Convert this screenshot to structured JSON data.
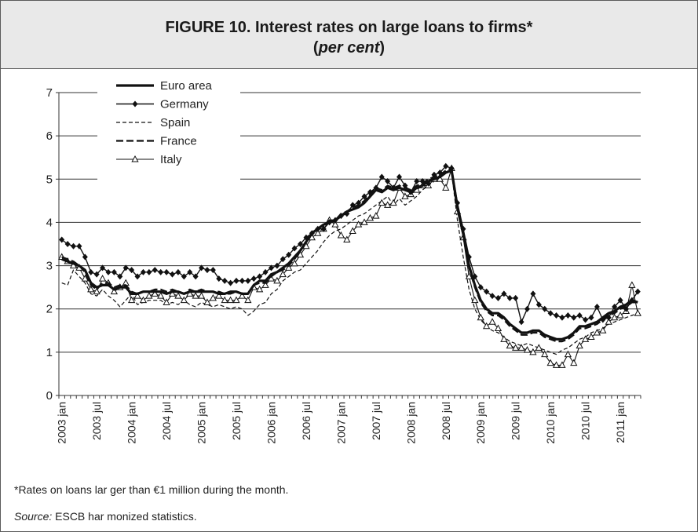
{
  "header": {
    "title": "FIGURE 10. Interest rates on large loans to firms*",
    "subtitle_open": "(",
    "subtitle_em": "per cent",
    "subtitle_close": ")"
  },
  "footnotes": {
    "note": "*Rates on loans lar ger than €1 million during the month.",
    "source_label": "Source:",
    "source_text": " ESCB har monized statistics."
  },
  "chart_data": {
    "type": "line",
    "title": "",
    "xlabel": "",
    "ylabel": "",
    "ylim": [
      0,
      7
    ],
    "yticks": [
      "0",
      "1",
      "2",
      "3",
      "4",
      "5",
      "6",
      "7"
    ],
    "grid": "horizontal",
    "legend_position": "top-left",
    "x_start": "2003-01",
    "x": [
      "2003-01",
      "2003-02",
      "2003-03",
      "2003-04",
      "2003-05",
      "2003-06",
      "2003-07",
      "2003-08",
      "2003-09",
      "2003-10",
      "2003-11",
      "2003-12",
      "2004-01",
      "2004-02",
      "2004-03",
      "2004-04",
      "2004-05",
      "2004-06",
      "2004-07",
      "2004-08",
      "2004-09",
      "2004-10",
      "2004-11",
      "2004-12",
      "2005-01",
      "2005-02",
      "2005-03",
      "2005-04",
      "2005-05",
      "2005-06",
      "2005-07",
      "2005-08",
      "2005-09",
      "2005-10",
      "2005-11",
      "2005-12",
      "2006-01",
      "2006-02",
      "2006-03",
      "2006-04",
      "2006-05",
      "2006-06",
      "2006-07",
      "2006-08",
      "2006-09",
      "2006-10",
      "2006-11",
      "2006-12",
      "2007-01",
      "2007-02",
      "2007-03",
      "2007-04",
      "2007-05",
      "2007-06",
      "2007-07",
      "2007-08",
      "2007-09",
      "2007-10",
      "2007-11",
      "2007-12",
      "2008-01",
      "2008-02",
      "2008-03",
      "2008-04",
      "2008-05",
      "2008-06",
      "2008-07",
      "2008-08",
      "2008-09",
      "2008-10",
      "2008-11",
      "2008-12",
      "2009-01",
      "2009-02",
      "2009-03",
      "2009-04",
      "2009-05",
      "2009-06",
      "2009-07",
      "2009-08",
      "2009-09",
      "2009-10",
      "2009-11",
      "2009-12",
      "2010-01",
      "2010-02",
      "2010-03",
      "2010-04",
      "2010-05",
      "2010-06",
      "2010-07",
      "2010-08",
      "2010-09",
      "2010-10",
      "2010-11",
      "2010-12",
      "2011-01",
      "2011-02",
      "2011-03",
      "2011-04"
    ],
    "x_tick_labels": [
      "2003 jan",
      "2003 jul",
      "2004 jan",
      "2004 jul",
      "2005 jan",
      "2005 jul",
      "2006 jan",
      "2006 jul",
      "2007 jan",
      "2007 jul",
      "2008 jan",
      "2008 jul",
      "2009 jan",
      "2009 jul",
      "2010 jan",
      "2010 jul",
      "2011 jan"
    ],
    "series": [
      {
        "name": "Euro area",
        "style": "bold-solid",
        "values": [
          3.15,
          3.1,
          3.05,
          3.0,
          2.9,
          2.6,
          2.5,
          2.55,
          2.55,
          2.45,
          2.5,
          2.5,
          2.35,
          2.35,
          2.4,
          2.4,
          2.4,
          2.4,
          2.35,
          2.4,
          2.4,
          2.35,
          2.4,
          2.4,
          2.4,
          2.4,
          2.4,
          2.35,
          2.35,
          2.4,
          2.4,
          2.35,
          2.35,
          2.55,
          2.65,
          2.65,
          2.8,
          2.85,
          2.95,
          3.05,
          3.2,
          3.35,
          3.55,
          3.75,
          3.85,
          3.95,
          4.0,
          4.05,
          4.15,
          4.25,
          4.3,
          4.35,
          4.45,
          4.6,
          4.75,
          4.7,
          4.8,
          4.75,
          4.8,
          4.75,
          4.7,
          4.8,
          4.85,
          4.95,
          5.0,
          5.05,
          5.15,
          5.2,
          4.35,
          3.75,
          3.0,
          2.55,
          2.2,
          2.0,
          1.9,
          1.9,
          1.8,
          1.65,
          1.55,
          1.45,
          1.45,
          1.5,
          1.5,
          1.4,
          1.35,
          1.3,
          1.3,
          1.35,
          1.45,
          1.6,
          1.6,
          1.65,
          1.7,
          1.8,
          1.9,
          1.95,
          2.05,
          2.1,
          2.2,
          2.15
        ]
      },
      {
        "name": "Germany",
        "style": "solid-diamond",
        "values": [
          3.6,
          3.5,
          3.45,
          3.45,
          3.2,
          2.85,
          2.8,
          2.95,
          2.85,
          2.85,
          2.75,
          2.95,
          2.9,
          2.75,
          2.85,
          2.85,
          2.9,
          2.85,
          2.85,
          2.8,
          2.85,
          2.75,
          2.85,
          2.75,
          2.95,
          2.9,
          2.9,
          2.7,
          2.65,
          2.6,
          2.65,
          2.65,
          2.65,
          2.7,
          2.75,
          2.85,
          2.95,
          3.0,
          3.15,
          3.25,
          3.4,
          3.5,
          3.65,
          3.75,
          3.85,
          3.85,
          4.0,
          4.05,
          4.15,
          4.2,
          4.4,
          4.45,
          4.6,
          4.7,
          4.8,
          5.05,
          4.95,
          4.8,
          5.05,
          4.85,
          4.7,
          4.95,
          4.95,
          4.9,
          5.1,
          5.15,
          5.3,
          5.25,
          4.45,
          3.85,
          3.2,
          2.75,
          2.5,
          2.4,
          2.3,
          2.25,
          2.35,
          2.25,
          2.25,
          1.7,
          2.0,
          2.35,
          2.1,
          2.0,
          1.9,
          1.85,
          1.8,
          1.85,
          1.8,
          1.85,
          1.75,
          1.8,
          2.05,
          1.75,
          1.8,
          2.05,
          2.2,
          2.0,
          2.2,
          2.4
        ]
      },
      {
        "name": "Spain",
        "style": "dashed",
        "values": [
          2.6,
          2.55,
          2.9,
          2.75,
          2.6,
          2.35,
          2.3,
          2.45,
          2.3,
          2.2,
          2.05,
          2.2,
          2.35,
          2.1,
          2.15,
          2.2,
          2.2,
          2.2,
          2.1,
          2.15,
          2.1,
          2.2,
          2.1,
          2.05,
          2.15,
          2.1,
          2.05,
          2.1,
          2.05,
          2.0,
          2.05,
          2.0,
          1.85,
          1.95,
          2.1,
          2.15,
          2.35,
          2.45,
          2.65,
          2.75,
          2.85,
          2.9,
          3.05,
          3.2,
          3.35,
          3.55,
          3.7,
          3.8,
          3.85,
          3.95,
          4.05,
          4.15,
          4.2,
          4.3,
          4.4,
          4.5,
          4.6,
          4.4,
          4.55,
          4.4,
          4.5,
          4.6,
          4.75,
          4.85,
          4.95,
          5.1,
          5.2,
          5.15,
          4.05,
          3.2,
          2.45,
          2.0,
          1.75,
          1.6,
          1.5,
          1.45,
          1.35,
          1.25,
          1.2,
          1.15,
          1.2,
          1.15,
          1.1,
          1.05,
          1.0,
          0.95,
          1.05,
          1.1,
          1.2,
          1.3,
          1.35,
          1.45,
          1.5,
          1.55,
          1.65,
          1.7,
          1.75,
          1.8,
          1.85,
          1.9
        ]
      },
      {
        "name": "France",
        "style": "long-dashed",
        "values": [
          3.2,
          3.15,
          3.1,
          3.0,
          2.85,
          2.55,
          2.45,
          2.6,
          2.6,
          2.5,
          2.55,
          2.55,
          2.4,
          2.35,
          2.4,
          2.4,
          2.45,
          2.45,
          2.4,
          2.45,
          2.4,
          2.35,
          2.45,
          2.4,
          2.45,
          2.4,
          2.4,
          2.4,
          2.35,
          2.35,
          2.4,
          2.35,
          2.35,
          2.55,
          2.6,
          2.6,
          2.75,
          2.85,
          2.9,
          3.0,
          3.15,
          3.35,
          3.55,
          3.75,
          3.85,
          3.95,
          4.05,
          4.05,
          4.2,
          4.25,
          4.35,
          4.4,
          4.5,
          4.65,
          4.8,
          4.75,
          4.85,
          4.8,
          4.85,
          4.8,
          4.75,
          4.85,
          4.9,
          5.0,
          5.05,
          5.1,
          5.2,
          5.25,
          4.3,
          3.7,
          2.95,
          2.5,
          2.15,
          1.95,
          1.85,
          1.85,
          1.75,
          1.6,
          1.5,
          1.4,
          1.4,
          1.45,
          1.45,
          1.35,
          1.3,
          1.25,
          1.25,
          1.3,
          1.4,
          1.55,
          1.55,
          1.6,
          1.65,
          1.75,
          1.85,
          1.9,
          2.0,
          2.05,
          2.15,
          2.15
        ]
      },
      {
        "name": "Italy",
        "style": "solid-triangle",
        "values": [
          3.2,
          3.1,
          3.0,
          2.95,
          2.7,
          2.45,
          2.4,
          2.7,
          2.6,
          2.4,
          2.5,
          2.6,
          2.2,
          2.3,
          2.2,
          2.3,
          2.35,
          2.3,
          2.15,
          2.35,
          2.3,
          2.2,
          2.35,
          2.3,
          2.3,
          2.15,
          2.25,
          2.3,
          2.2,
          2.2,
          2.2,
          2.3,
          2.2,
          2.5,
          2.45,
          2.55,
          2.7,
          2.65,
          2.8,
          2.95,
          3.05,
          3.25,
          3.45,
          3.65,
          3.75,
          3.85,
          4.05,
          3.95,
          3.7,
          3.6,
          3.8,
          3.95,
          4.0,
          4.1,
          4.15,
          4.45,
          4.4,
          4.45,
          4.8,
          4.6,
          4.65,
          4.75,
          4.85,
          4.85,
          5.0,
          5.0,
          4.8,
          5.25,
          4.25,
          3.65,
          2.75,
          2.2,
          1.8,
          1.6,
          1.7,
          1.55,
          1.3,
          1.15,
          1.1,
          1.1,
          1.05,
          1.0,
          1.1,
          0.95,
          0.75,
          0.7,
          0.7,
          0.95,
          0.75,
          1.15,
          1.3,
          1.35,
          1.45,
          1.5,
          1.7,
          1.8,
          1.85,
          1.95,
          2.55,
          1.9
        ]
      }
    ]
  }
}
